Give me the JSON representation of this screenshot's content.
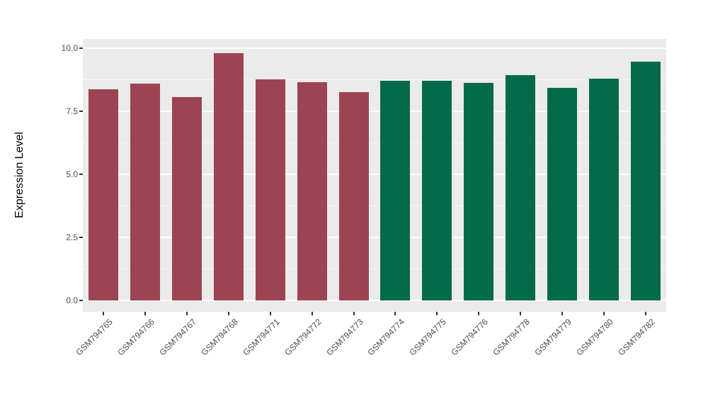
{
  "chart_data": {
    "type": "bar",
    "title": "",
    "xlabel": "",
    "ylabel": "Expression Level",
    "ylim": [
      0,
      10.35
    ],
    "yticks": [
      0,
      2.5,
      5,
      7.5,
      10
    ],
    "ytick_labels": [
      "0.0",
      "2.5",
      "5.0",
      "7.5",
      "10.0"
    ],
    "yticks_minor": [
      1.25,
      3.75,
      6.25,
      8.75
    ],
    "grid": "horizontal major and minor white gridlines on gray panel",
    "legend": "none",
    "xtick_angle_deg": 45,
    "categories": [
      "GSM794765",
      "GSM794766",
      "GSM794767",
      "GSM794768",
      "GSM794771",
      "GSM794772",
      "GSM794773",
      "GSM794774",
      "GSM794775",
      "GSM794776",
      "GSM794778",
      "GSM794779",
      "GSM794780",
      "GSM794782"
    ],
    "values": [
      8.38,
      8.6,
      8.05,
      9.8,
      8.76,
      8.66,
      8.25,
      8.7,
      8.72,
      8.62,
      8.92,
      8.44,
      8.8,
      9.46
    ],
    "bar_colors": [
      "#9C4453",
      "#9C4453",
      "#9C4453",
      "#9C4453",
      "#9C4453",
      "#9C4453",
      "#9C4453",
      "#046A4A",
      "#046A4A",
      "#046A4A",
      "#046A4A",
      "#046A4A",
      "#046A4A",
      "#046A4A"
    ],
    "groups": [
      {
        "color": "#9C4453",
        "samples": [
          "GSM794765",
          "GSM794766",
          "GSM794767",
          "GSM794768",
          "GSM794771",
          "GSM794772",
          "GSM794773"
        ]
      },
      {
        "color": "#046A4A",
        "samples": [
          "GSM794774",
          "GSM794775",
          "GSM794776",
          "GSM794778",
          "GSM794779",
          "GSM794780",
          "GSM794782"
        ]
      }
    ]
  },
  "figure": {
    "background": "#FFFFFF",
    "panel_background": "#EBEBEB",
    "gridline_major_color": "#FFFFFF",
    "gridline_minor_color": "#F7F7F7",
    "tick_color": "#333333",
    "tick_label_color": "#4D4D4D",
    "axis_title_color": "#000000"
  }
}
